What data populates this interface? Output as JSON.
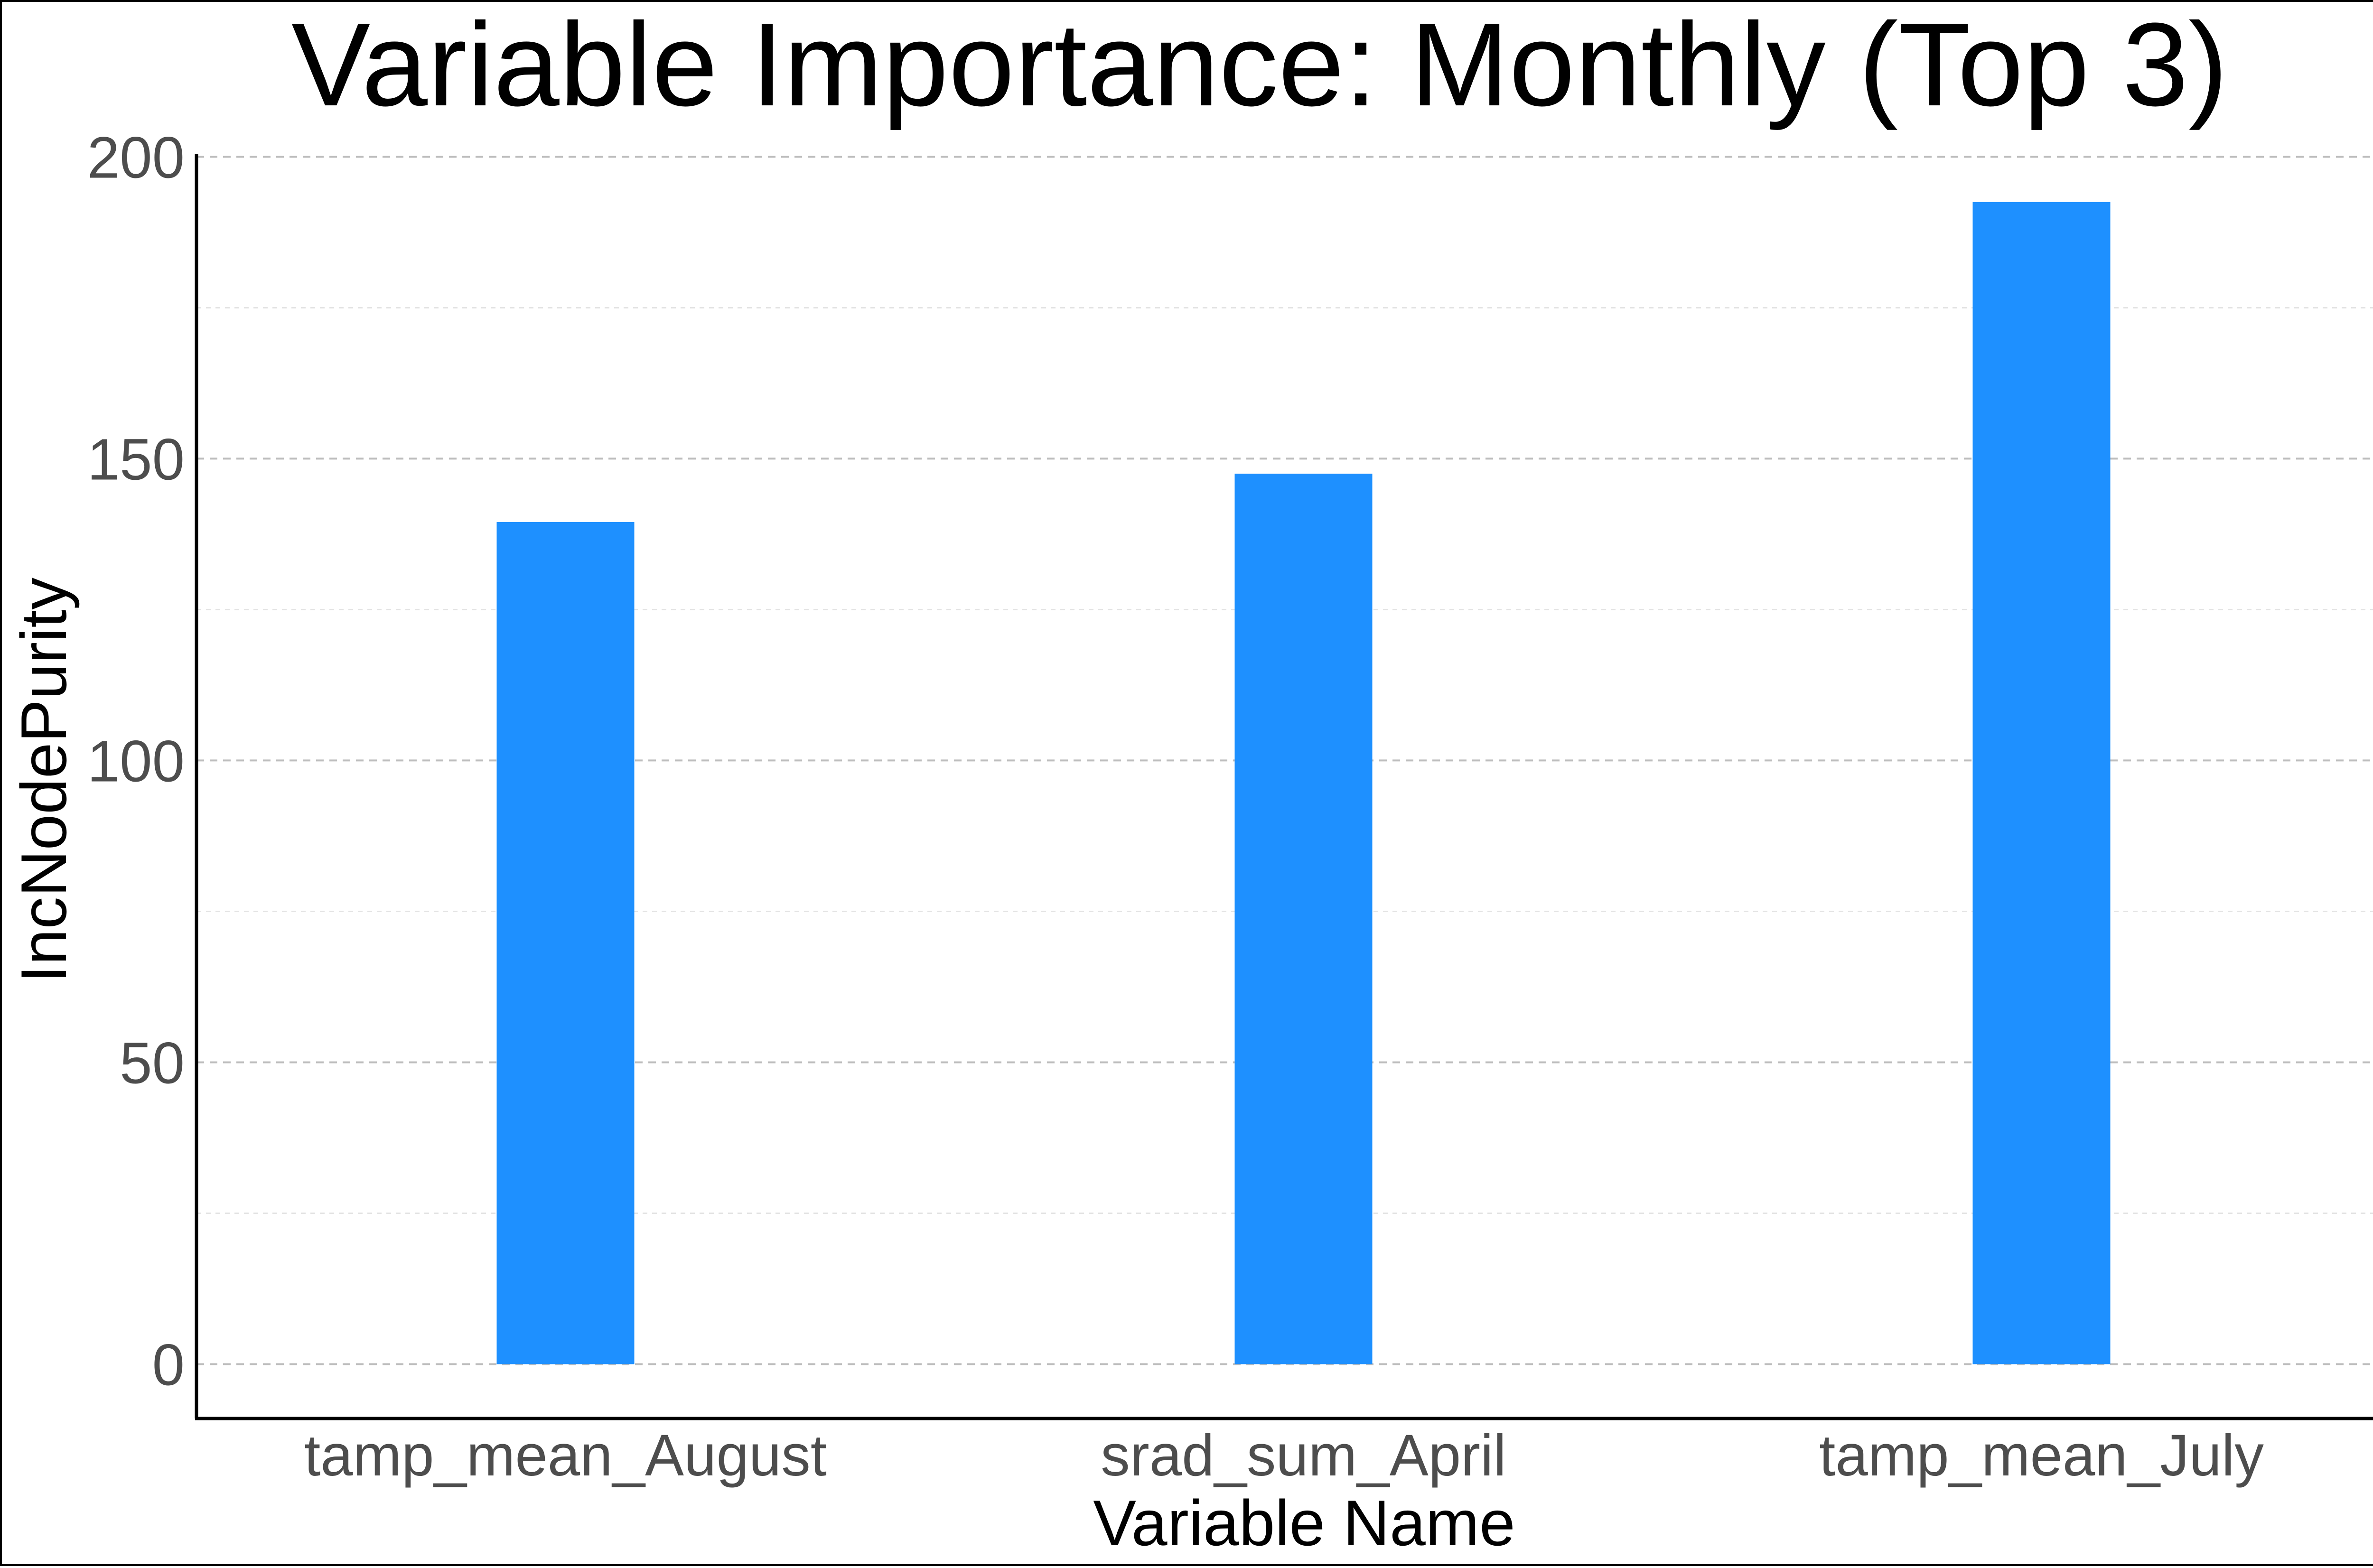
{
  "chart_data": {
    "type": "bar",
    "title": "Variable Importance: Monthly (Top 3)",
    "xlabel": "Variable Name",
    "ylabel": "IncNodePurity",
    "categories": [
      "tamp_mean_August",
      "srad_sum_April",
      "tamp_mean_July"
    ],
    "values": [
      139.5,
      147.5,
      192.5
    ],
    "ylim": [
      -9,
      200.5
    ],
    "yticks": [
      "0",
      "50",
      "100",
      "150",
      "200"
    ],
    "grid": "horizontal dashed",
    "bar_color": "#1E90FF",
    "legend": "none"
  }
}
